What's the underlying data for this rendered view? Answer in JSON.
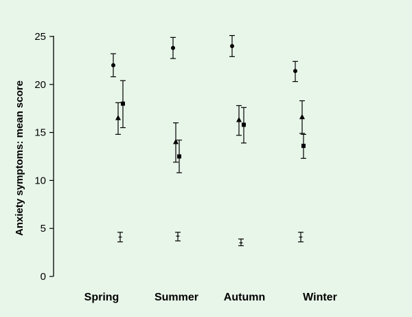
{
  "background": "#e8f5e9",
  "chart_data": {
    "type": "scatter",
    "ylabel": "Anxiety symptoms:  mean score",
    "xlabel": "",
    "title": "",
    "categories": [
      "Spring",
      "Summer",
      "Autumn",
      "Winter"
    ],
    "ylim": [
      0,
      25
    ],
    "yticks": [
      0,
      5,
      10,
      15,
      20,
      25
    ],
    "legend": "none",
    "grid": false,
    "series": [
      {
        "marker": "circle",
        "values": [
          22.0,
          23.8,
          24.0,
          21.4
        ],
        "err_low": [
          20.8,
          22.7,
          22.9,
          20.3
        ],
        "err_high": [
          23.2,
          24.9,
          25.1,
          22.4
        ]
      },
      {
        "marker": "triangle",
        "values": [
          16.5,
          14.0,
          16.3,
          16.6
        ],
        "err_low": [
          14.8,
          11.9,
          14.7,
          14.9
        ],
        "err_high": [
          18.1,
          16.0,
          17.8,
          18.3
        ]
      },
      {
        "marker": "square",
        "values": [
          18.0,
          12.5,
          15.8,
          13.6
        ],
        "err_low": [
          15.5,
          10.8,
          13.9,
          12.3
        ],
        "err_high": [
          20.4,
          14.2,
          17.6,
          14.8
        ]
      },
      {
        "marker": "dash",
        "values": [
          4.1,
          4.2,
          3.5,
          4.1
        ],
        "err_low": [
          3.6,
          3.7,
          3.2,
          3.6
        ],
        "err_high": [
          4.6,
          4.6,
          3.9,
          4.6
        ]
      }
    ]
  }
}
